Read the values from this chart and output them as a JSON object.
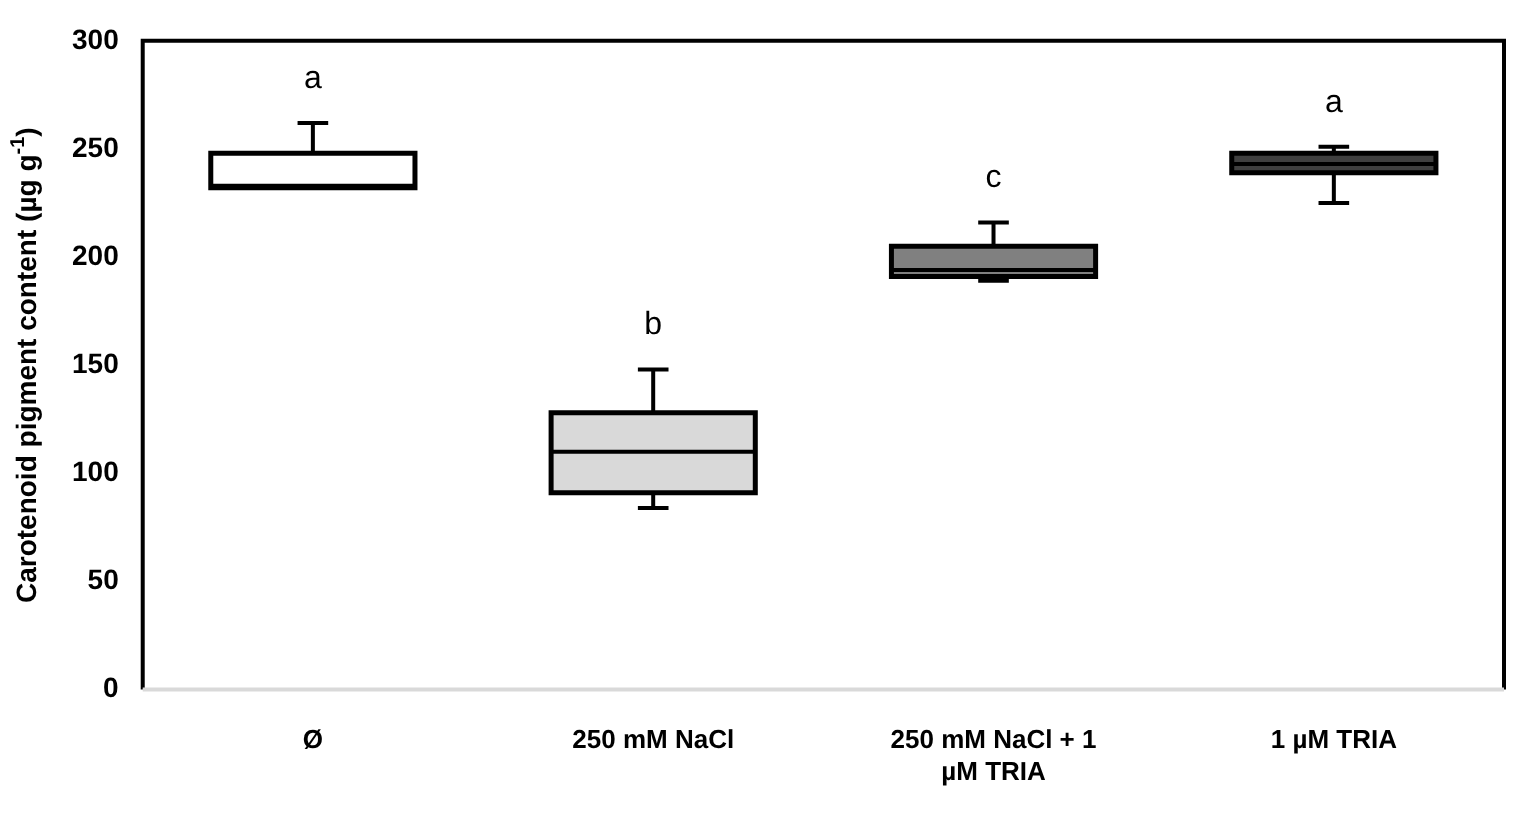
{
  "chart_data": {
    "type": "box",
    "ylabel": "Carotenoid pigment content (µg g$^{-1}$)",
    "categories": [
      "Ø",
      "250 mM NaCl",
      "250 mM NaCl + 1 µM TRIA",
      "1 µM TRIA"
    ],
    "boxes": [
      {
        "low": 232,
        "q1": 232,
        "median": 233,
        "q3": 248,
        "high": 262
      },
      {
        "low": 84,
        "q1": 91,
        "median": 110,
        "q3": 128,
        "high": 148
      },
      {
        "low": 189,
        "q1": 191,
        "median": 194,
        "q3": 205,
        "high": 216
      },
      {
        "low": 225,
        "q1": 239,
        "median": 243,
        "q3": 248,
        "high": 251
      }
    ],
    "colors": [
      "#ffffff",
      "#d9d9d9",
      "#808080",
      "#404040"
    ],
    "ylim": [
      0,
      300
    ],
    "yticks": [
      0,
      50,
      100,
      150,
      200,
      250,
      300
    ],
    "grid": false,
    "legend": false,
    "annotations": [
      "a",
      "b",
      "c",
      "a"
    ]
  }
}
